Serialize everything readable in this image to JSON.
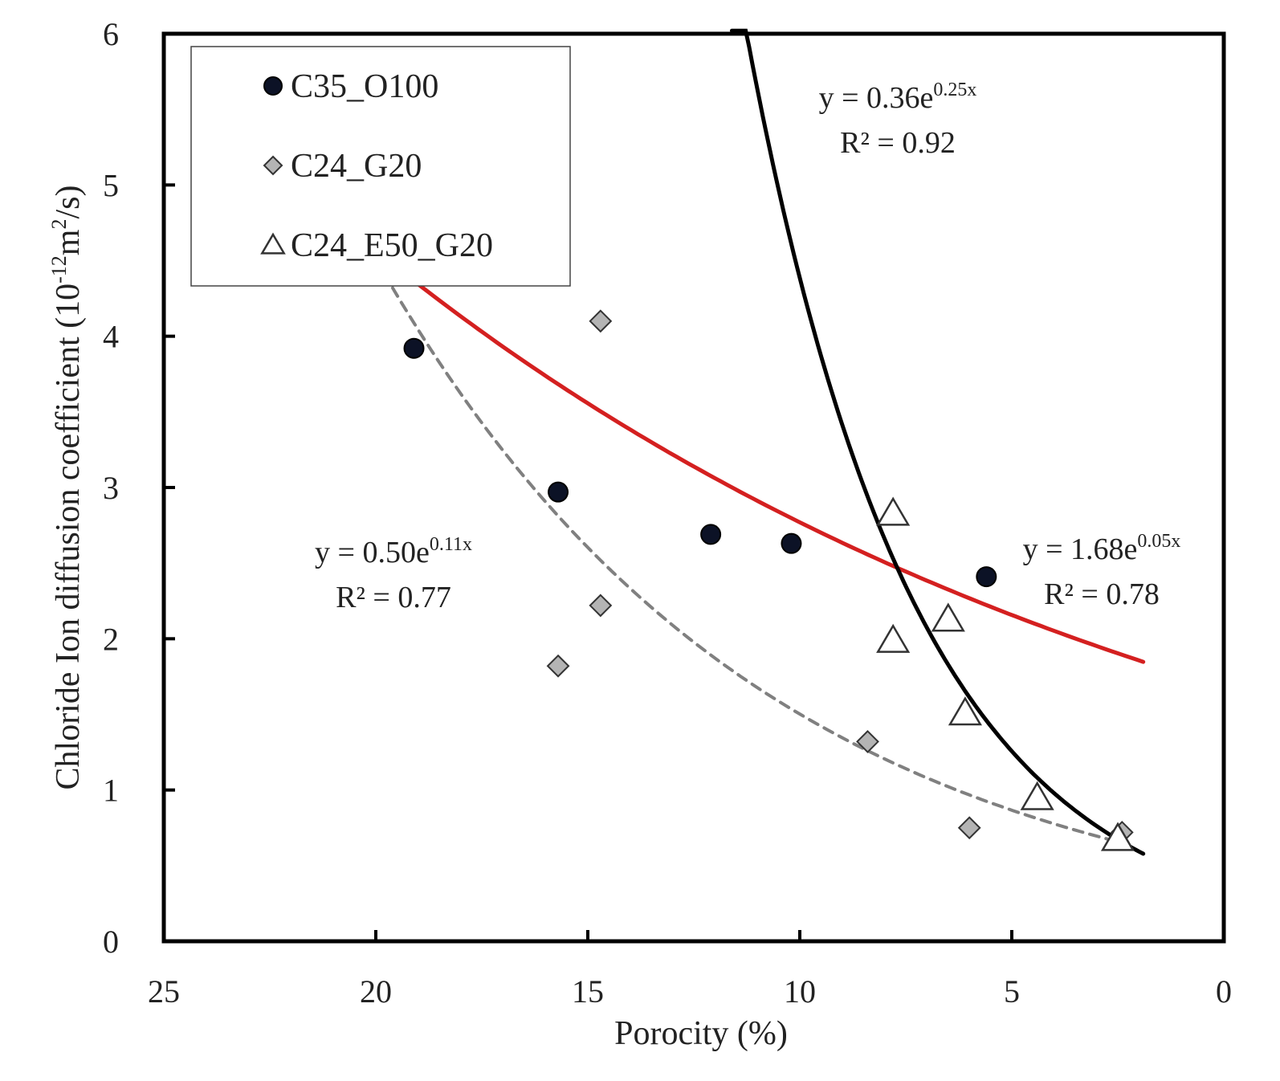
{
  "chart_data": {
    "type": "scatter",
    "title": "",
    "xlabel": "Porocity (%)",
    "ylabel": "Chloride Ion diffusion coefficient (10-12m2/s)",
    "ylabel_parts": {
      "main": "Chloride Ion diffusion coefficient (10",
      "exp1": "-12",
      "unit": "m",
      "exp2": "2",
      "tail": "/s)"
    },
    "xlim": [
      25,
      0
    ],
    "ylim": [
      0,
      6
    ],
    "x_reversed": true,
    "xticks": [
      25,
      20,
      15,
      10,
      5,
      0
    ],
    "yticks": [
      0,
      1,
      2,
      3,
      4,
      5,
      6
    ],
    "grid": false,
    "legend_position": "top-left",
    "series": [
      {
        "name": "C35_O100",
        "marker": "circle",
        "points": [
          [
            19.1,
            3.92
          ],
          [
            15.7,
            2.97
          ],
          [
            12.1,
            2.69
          ],
          [
            10.2,
            2.63
          ],
          [
            5.6,
            2.41
          ]
        ],
        "fit": {
          "a": 1.68,
          "b": 0.05,
          "x_from": 20.0,
          "x_to": 1.9,
          "style": "solid",
          "color": "#d42020"
        },
        "equation": {
          "prefix": "y = 1.68e",
          "exponent": "0.05x",
          "r2": "R² = 0.78"
        }
      },
      {
        "name": "C24_G20",
        "marker": "diamond",
        "points": [
          [
            14.7,
            4.1
          ],
          [
            14.7,
            2.22
          ],
          [
            15.7,
            1.82
          ],
          [
            8.4,
            1.32
          ],
          [
            6.0,
            0.75
          ],
          [
            2.4,
            0.72
          ]
        ],
        "fit": {
          "a": 0.5,
          "b": 0.11,
          "x_from": 20.0,
          "x_to": 2.5,
          "style": "dashed",
          "color": "#808080"
        },
        "equation": {
          "prefix": "y = 0.50e",
          "exponent": "0.11x",
          "r2": "R² = 0.77"
        }
      },
      {
        "name": "C24_E50_G20",
        "marker": "triangle",
        "points": [
          [
            7.8,
            2.83
          ],
          [
            7.8,
            1.99
          ],
          [
            6.5,
            2.13
          ],
          [
            6.1,
            1.51
          ],
          [
            4.4,
            0.95
          ],
          [
            2.5,
            0.68
          ]
        ],
        "fit": {
          "a": 0.36,
          "b": 0.25,
          "x_from": 11.6,
          "x_to": 1.9,
          "style": "solid",
          "color": "#000000"
        },
        "equation": {
          "prefix": "y = 0.36e",
          "exponent": "0.25x",
          "r2": "R² = 0.92"
        }
      }
    ]
  }
}
